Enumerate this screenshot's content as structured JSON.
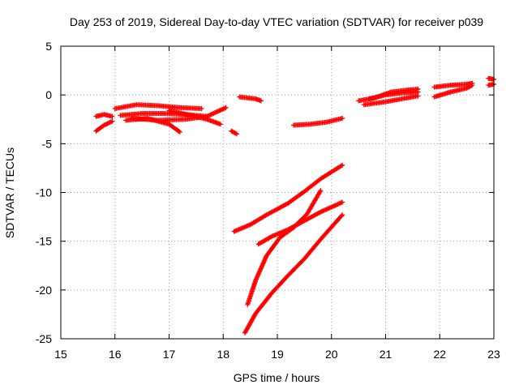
{
  "chart_data": {
    "type": "scatter",
    "title": "Day 253 of 2019, Sidereal Day-to-day VTEC variation (SDTVAR) for receiver p039",
    "xlabel": "GPS time / hours",
    "ylabel": "SDTVAR / TECUs",
    "xlim": [
      15,
      23
    ],
    "ylim": [
      -25,
      5
    ],
    "xticks": [
      15,
      16,
      17,
      18,
      19,
      20,
      21,
      22,
      23
    ],
    "yticks": [
      5,
      0,
      -5,
      -10,
      -15,
      -20,
      -25
    ],
    "grid": true,
    "marker": "plus",
    "color": "#ff0000",
    "series": [
      {
        "x": [
          15.65,
          15.8,
          15.95
        ],
        "y": [
          -3.7,
          -3.1,
          -2.7
        ]
      },
      {
        "x": [
          15.65,
          15.8,
          15.95
        ],
        "y": [
          -2.2,
          -2.0,
          -2.2
        ]
      },
      {
        "x": [
          16.0,
          16.4,
          16.8,
          17.2,
          17.6
        ],
        "y": [
          -1.4,
          -1.0,
          -1.1,
          -1.3,
          -1.4
        ]
      },
      {
        "x": [
          16.1,
          16.5,
          16.9,
          17.3,
          17.7
        ],
        "y": [
          -2.1,
          -1.9,
          -1.9,
          -2.0,
          -2.2
        ]
      },
      {
        "x": [
          16.2,
          16.6,
          17.0,
          17.2
        ],
        "y": [
          -2.6,
          -2.4,
          -3.0,
          -3.8
        ]
      },
      {
        "x": [
          16.3,
          16.8,
          17.3,
          17.7,
          18.05
        ],
        "y": [
          -2.4,
          -2.6,
          -2.5,
          -2.2,
          -1.3
        ]
      },
      {
        "x": [
          17.0,
          17.4,
          17.7,
          17.95
        ],
        "y": [
          -1.6,
          -2.1,
          -2.5,
          -3.0
        ]
      },
      {
        "x": [
          18.15,
          18.25
        ],
        "y": [
          -3.7,
          -4.0
        ]
      },
      {
        "x": [
          18.3,
          18.6,
          18.7
        ],
        "y": [
          -0.2,
          -0.4,
          -0.6
        ]
      },
      {
        "x": [
          19.3,
          19.6,
          19.9,
          20.2
        ],
        "y": [
          -3.1,
          -3.0,
          -2.8,
          -2.4
        ]
      },
      {
        "x": [
          18.2,
          18.5,
          18.8,
          19.2,
          19.5,
          19.8,
          20.2
        ],
        "y": [
          -14.0,
          -13.3,
          -12.3,
          -11.1,
          -9.9,
          -8.6,
          -7.2
        ]
      },
      {
        "x": [
          18.65,
          18.9,
          19.2,
          19.5,
          19.8,
          20.2
        ],
        "y": [
          -15.3,
          -14.5,
          -13.8,
          -12.9,
          -12.0,
          -11.0
        ]
      },
      {
        "x": [
          18.45,
          18.6,
          18.8,
          19.05,
          19.3,
          19.55,
          19.8
        ],
        "y": [
          -21.5,
          -19.0,
          -16.5,
          -14.6,
          -13.6,
          -12.2,
          -9.8
        ]
      },
      {
        "x": [
          18.4,
          18.6,
          18.9,
          19.2,
          19.5,
          19.8,
          20.2
        ],
        "y": [
          -24.4,
          -22.4,
          -20.3,
          -18.5,
          -16.8,
          -14.8,
          -12.3
        ]
      },
      {
        "x": [
          20.5,
          20.8,
          21.1,
          21.4,
          21.6
        ],
        "y": [
          -0.6,
          -0.3,
          0.3,
          0.5,
          0.6
        ]
      },
      {
        "x": [
          20.6,
          21.0,
          21.3,
          21.6
        ],
        "y": [
          -1.0,
          -0.7,
          -0.4,
          -0.1
        ]
      },
      {
        "x": [
          20.7,
          21.0,
          21.3,
          21.6
        ],
        "y": [
          -0.4,
          0.0,
          0.2,
          0.3
        ]
      },
      {
        "x": [
          21.9,
          22.2,
          22.5,
          22.6
        ],
        "y": [
          0.8,
          1.0,
          1.1,
          1.2
        ]
      },
      {
        "x": [
          21.9,
          22.2,
          22.5,
          22.6
        ],
        "y": [
          -0.2,
          0.3,
          0.7,
          1.0
        ]
      },
      {
        "x": [
          22.9,
          23.0
        ],
        "y": [
          1.7,
          1.6
        ]
      },
      {
        "x": [
          22.9,
          23.0
        ],
        "y": [
          1.0,
          1.1
        ]
      }
    ]
  }
}
